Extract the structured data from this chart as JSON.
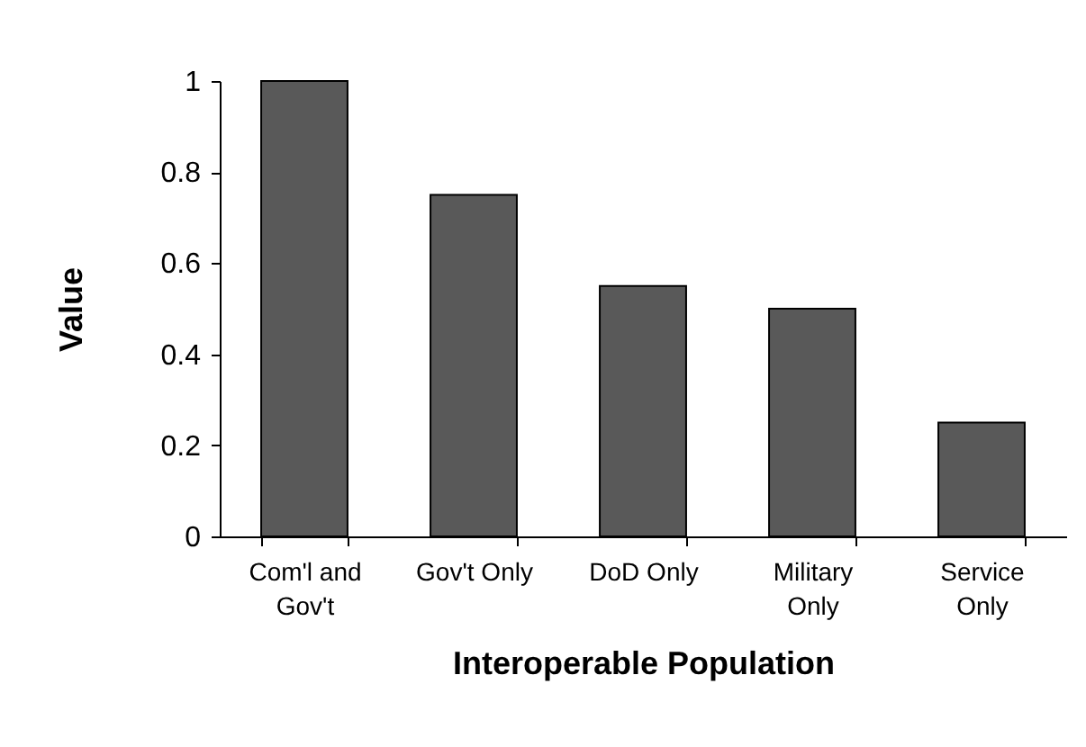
{
  "chart_data": {
    "type": "bar",
    "xlabel": "Interoperable Population",
    "ylabel": "Value",
    "categories": [
      "Com'l and Gov't",
      "Gov't Only",
      "DoD Only",
      "Military Only",
      "Service Only"
    ],
    "values": [
      1,
      0.75,
      0.55,
      0.5,
      0.25
    ],
    "color": "#595959",
    "ylim": [
      0,
      1
    ],
    "yticks": [
      0,
      0.2,
      0.4,
      0.6,
      0.8,
      1
    ],
    "grid": false
  }
}
